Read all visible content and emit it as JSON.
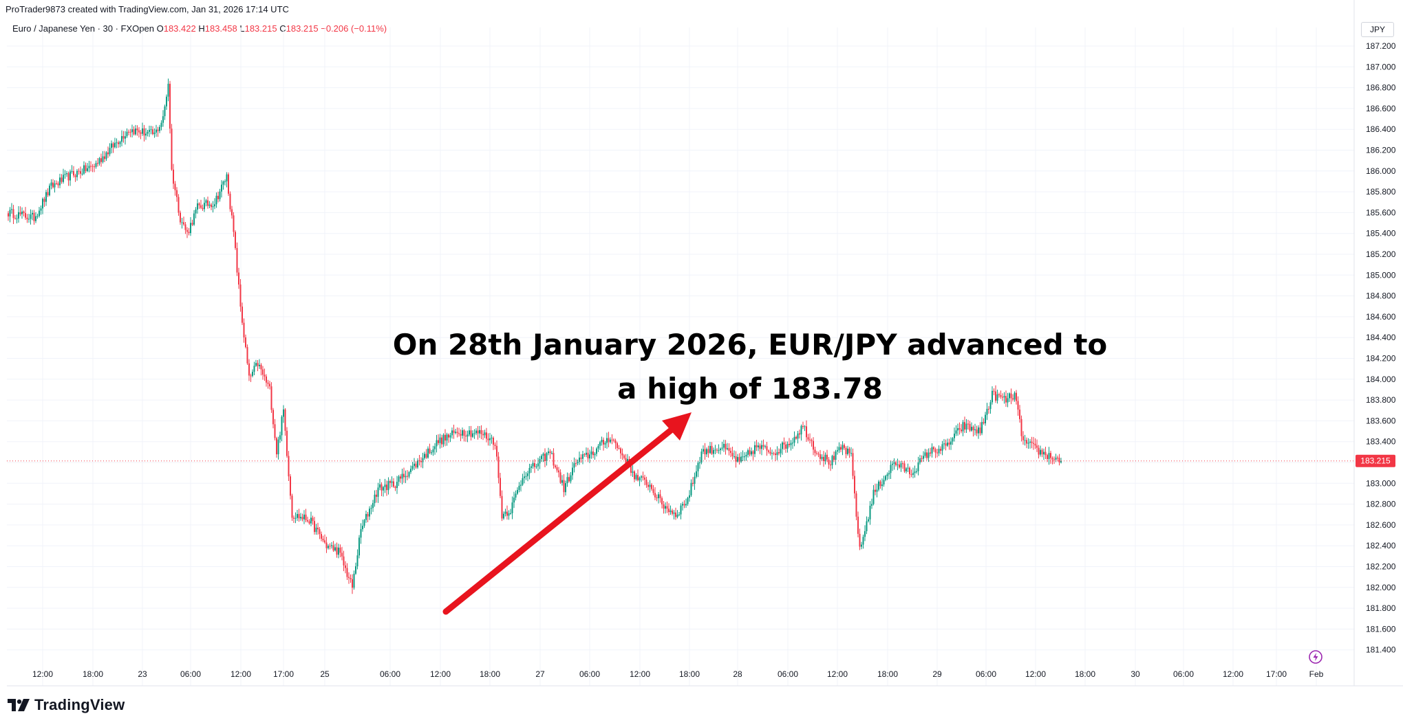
{
  "header": {
    "credit": "ProTrader9873 created with TradingView.com, Jan 31, 2026 17:14 UTC",
    "symbol": "Euro / Japanese Yen · 30 · FXOpen",
    "o_label": "O",
    "o_value": "183.422",
    "h_label": "H",
    "h_value": "183.458",
    "l_label": "L",
    "l_value": "183.215",
    "c_label": "C",
    "c_value": "183.215",
    "change": "−0.206 (−0.11%)"
  },
  "currency": "JPY",
  "annotation": {
    "line1": "On 28th January 2026, EUR/JPY advanced to",
    "line2": "a high of 183.78"
  },
  "brand": {
    "name": "TradingView"
  },
  "colors": {
    "up": "#089981",
    "down": "#f23645",
    "arrow": "#e8141e",
    "grid": "#f0f3fa"
  },
  "chart_data": {
    "type": "candlestick",
    "title": "Euro / Japanese Yen · 30 · FXOpen",
    "ylim": [
      181.3,
      187.3
    ],
    "y_ticks": [
      "187.200",
      "187.000",
      "186.800",
      "186.600",
      "186.400",
      "186.200",
      "186.000",
      "185.800",
      "185.600",
      "185.400",
      "185.200",
      "185.000",
      "184.800",
      "184.600",
      "184.400",
      "184.200",
      "184.000",
      "183.800",
      "183.600",
      "183.400",
      "183.200",
      "183.000",
      "182.800",
      "182.600",
      "182.400",
      "182.200",
      "182.000",
      "181.800",
      "181.600",
      "181.400"
    ],
    "x_ticks": [
      "12:00",
      "18:00",
      "23",
      "06:00",
      "12:00",
      "17:00",
      "25",
      "06:00",
      "12:00",
      "18:00",
      "27",
      "06:00",
      "12:00",
      "18:00",
      "28",
      "06:00",
      "12:00",
      "18:00",
      "29",
      "06:00",
      "12:00",
      "18:00",
      "30",
      "06:00",
      "12:00",
      "17:00",
      "Feb"
    ],
    "last_price": "183.215",
    "keypoints": [
      [
        0,
        185.6
      ],
      [
        15,
        185.55
      ],
      [
        25,
        185.85
      ],
      [
        35,
        185.95
      ],
      [
        50,
        186.05
      ],
      [
        70,
        186.4
      ],
      [
        85,
        186.35
      ],
      [
        90,
        186.5
      ],
      [
        93,
        186.85
      ],
      [
        95,
        186.0
      ],
      [
        100,
        185.55
      ],
      [
        104,
        185.4
      ],
      [
        110,
        185.65
      ],
      [
        120,
        185.7
      ],
      [
        127,
        185.95
      ],
      [
        131,
        185.4
      ],
      [
        135,
        184.7
      ],
      [
        140,
        184.0
      ],
      [
        145,
        184.15
      ],
      [
        152,
        183.9
      ],
      [
        156,
        183.3
      ],
      [
        160,
        183.7
      ],
      [
        165,
        182.7
      ],
      [
        175,
        182.65
      ],
      [
        185,
        182.4
      ],
      [
        192,
        182.35
      ],
      [
        200,
        182.0
      ],
      [
        205,
        182.55
      ],
      [
        215,
        182.95
      ],
      [
        225,
        183.0
      ],
      [
        235,
        183.15
      ],
      [
        250,
        183.4
      ],
      [
        262,
        183.5
      ],
      [
        275,
        183.48
      ],
      [
        283,
        183.4
      ],
      [
        287,
        182.7
      ],
      [
        292,
        182.75
      ],
      [
        300,
        183.1
      ],
      [
        305,
        183.15
      ],
      [
        315,
        183.3
      ],
      [
        323,
        182.95
      ],
      [
        330,
        183.2
      ],
      [
        340,
        183.3
      ],
      [
        350,
        183.45
      ],
      [
        358,
        183.25
      ],
      [
        365,
        183.05
      ],
      [
        372,
        183.0
      ],
      [
        380,
        182.8
      ],
      [
        388,
        182.7
      ],
      [
        395,
        182.85
      ],
      [
        403,
        183.3
      ],
      [
        415,
        183.35
      ],
      [
        425,
        183.2
      ],
      [
        435,
        183.35
      ],
      [
        445,
        183.3
      ],
      [
        455,
        183.4
      ],
      [
        462,
        183.55
      ],
      [
        470,
        183.3
      ],
      [
        478,
        183.2
      ],
      [
        485,
        183.35
      ],
      [
        490,
        183.25
      ],
      [
        495,
        182.35
      ],
      [
        503,
        182.9
      ],
      [
        515,
        183.2
      ],
      [
        525,
        183.1
      ],
      [
        535,
        183.3
      ],
      [
        545,
        183.35
      ],
      [
        555,
        183.55
      ],
      [
        565,
        183.5
      ],
      [
        572,
        183.85
      ],
      [
        580,
        183.8
      ],
      [
        585,
        183.85
      ],
      [
        590,
        183.4
      ],
      [
        600,
        183.3
      ],
      [
        612,
        183.215
      ]
    ]
  }
}
